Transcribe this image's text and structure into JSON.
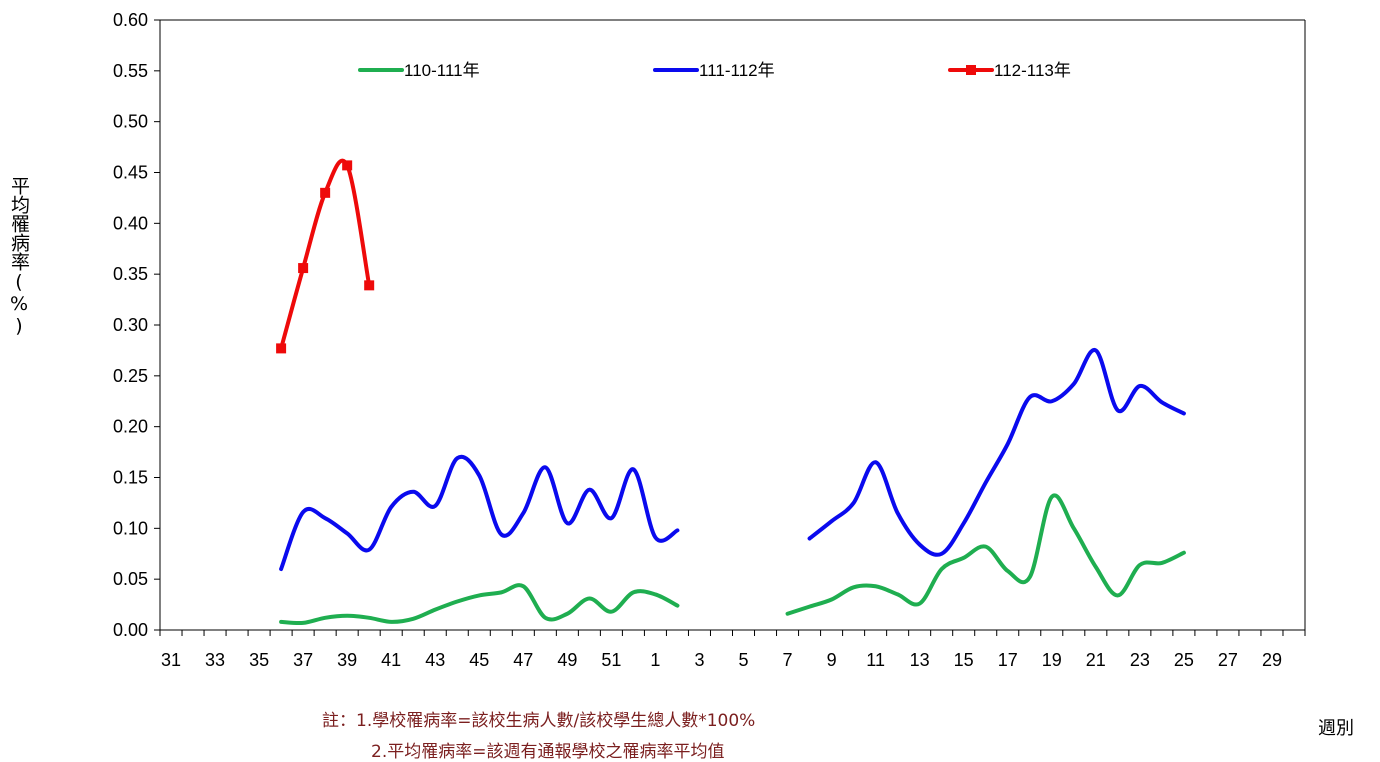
{
  "chart_data": {
    "type": "line",
    "ylabel": "平均罹病率(%)",
    "xlabel": "週別",
    "ylim": [
      0,
      0.6
    ],
    "y_ticks": [
      "0.00",
      "0.05",
      "0.10",
      "0.15",
      "0.20",
      "0.25",
      "0.30",
      "0.35",
      "0.40",
      "0.45",
      "0.50",
      "0.55",
      "0.60"
    ],
    "weeks": [
      31,
      32,
      33,
      34,
      35,
      36,
      37,
      38,
      39,
      40,
      41,
      42,
      43,
      44,
      45,
      46,
      47,
      48,
      49,
      50,
      51,
      52,
      1,
      2,
      3,
      4,
      5,
      6,
      7,
      8,
      9,
      10,
      11,
      12,
      13,
      14,
      15,
      16,
      17,
      18,
      19,
      20,
      21,
      22,
      23,
      24,
      25,
      26,
      27,
      28,
      29,
      30
    ],
    "x_tick_labels": [
      "31",
      "33",
      "35",
      "37",
      "39",
      "41",
      "43",
      "45",
      "47",
      "49",
      "51",
      "1",
      "3",
      "5",
      "7",
      "9",
      "11",
      "13",
      "15",
      "17",
      "19",
      "21",
      "23",
      "25",
      "27",
      "29"
    ],
    "legend_position": "top",
    "series": [
      {
        "name": "110-111年",
        "color": "#1fae50",
        "marker": "none",
        "points": [
          [
            36,
            0.008
          ],
          [
            37,
            0.007
          ],
          [
            38,
            0.012
          ],
          [
            39,
            0.014
          ],
          [
            40,
            0.012
          ],
          [
            41,
            0.008
          ],
          [
            42,
            0.011
          ],
          [
            43,
            0.02
          ],
          [
            44,
            0.028
          ],
          [
            45,
            0.034
          ],
          [
            46,
            0.037
          ],
          [
            47,
            0.043
          ],
          [
            48,
            0.012
          ],
          [
            49,
            0.016
          ],
          [
            50,
            0.031
          ],
          [
            51,
            0.018
          ],
          [
            52,
            0.037
          ],
          [
            1,
            0.035
          ],
          [
            2,
            0.024
          ],
          [
            7,
            0.016
          ],
          [
            8,
            0.023
          ],
          [
            9,
            0.03
          ],
          [
            10,
            0.042
          ],
          [
            11,
            0.043
          ],
          [
            12,
            0.035
          ],
          [
            13,
            0.026
          ],
          [
            14,
            0.06
          ],
          [
            15,
            0.071
          ],
          [
            16,
            0.082
          ],
          [
            17,
            0.058
          ],
          [
            18,
            0.052
          ],
          [
            19,
            0.131
          ],
          [
            20,
            0.1
          ],
          [
            21,
            0.062
          ],
          [
            22,
            0.034
          ],
          [
            23,
            0.064
          ],
          [
            24,
            0.066
          ],
          [
            25,
            0.076
          ]
        ]
      },
      {
        "name": "111-112年",
        "color": "#0a0aee",
        "marker": "none",
        "points": [
          [
            36,
            0.06
          ],
          [
            37,
            0.116
          ],
          [
            38,
            0.11
          ],
          [
            39,
            0.095
          ],
          [
            40,
            0.079
          ],
          [
            41,
            0.121
          ],
          [
            42,
            0.136
          ],
          [
            43,
            0.122
          ],
          [
            44,
            0.169
          ],
          [
            45,
            0.152
          ],
          [
            46,
            0.094
          ],
          [
            47,
            0.115
          ],
          [
            48,
            0.16
          ],
          [
            49,
            0.105
          ],
          [
            50,
            0.138
          ],
          [
            51,
            0.11
          ],
          [
            52,
            0.158
          ],
          [
            1,
            0.091
          ],
          [
            2,
            0.098
          ],
          [
            8,
            0.09
          ],
          [
            9,
            0.107
          ],
          [
            10,
            0.125
          ],
          [
            11,
            0.165
          ],
          [
            12,
            0.115
          ],
          [
            13,
            0.084
          ],
          [
            14,
            0.075
          ],
          [
            15,
            0.105
          ],
          [
            16,
            0.145
          ],
          [
            17,
            0.183
          ],
          [
            18,
            0.229
          ],
          [
            19,
            0.225
          ],
          [
            20,
            0.242
          ],
          [
            21,
            0.275
          ],
          [
            22,
            0.216
          ],
          [
            23,
            0.24
          ],
          [
            24,
            0.224
          ],
          [
            25,
            0.213
          ]
        ]
      },
      {
        "name": "112-113年",
        "color": "#ee0a0a",
        "marker": "square",
        "points": [
          [
            36,
            0.277
          ],
          [
            37,
            0.356
          ],
          [
            38,
            0.43
          ],
          [
            39,
            0.457
          ],
          [
            40,
            0.339
          ]
        ]
      }
    ]
  },
  "notes": {
    "line1": "註：1.學校罹病率=該校生病人數/該校學生總人數*100%",
    "line2": "2.平均罹病率=該週有通報學校之罹病率平均值"
  }
}
